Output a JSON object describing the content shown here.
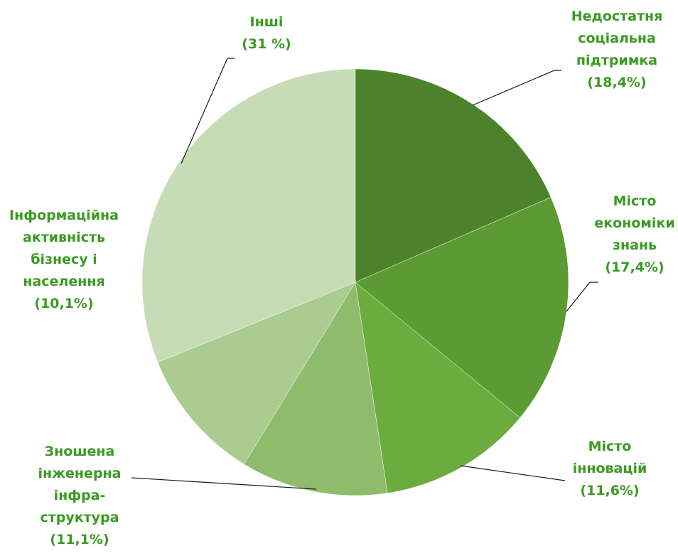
{
  "chart_data": {
    "type": "pie",
    "categories": [
      "Недостатня\nсоціальна\nпідтримка",
      "Місто\nекономіки\nзнань",
      "Місто\nінновацій",
      "Зношена\nінженерна\nінфра-\nструктура",
      "Інформаційна\nактивність\nбізнесу і\nнаселення",
      "Інші"
    ],
    "values": [
      18.4,
      17.4,
      11.6,
      11.1,
      10.1,
      31
    ],
    "value_labels": [
      "(18,4%)",
      "(17,4%)",
      "(11,6%)",
      "(11,1%)",
      "(10,1%)",
      "(31 %)"
    ],
    "colors": [
      "#4c822b",
      "#5c9a34",
      "#6cab3e",
      "#8fbc6b",
      "#abcc90",
      "#c6dcb6"
    ]
  }
}
